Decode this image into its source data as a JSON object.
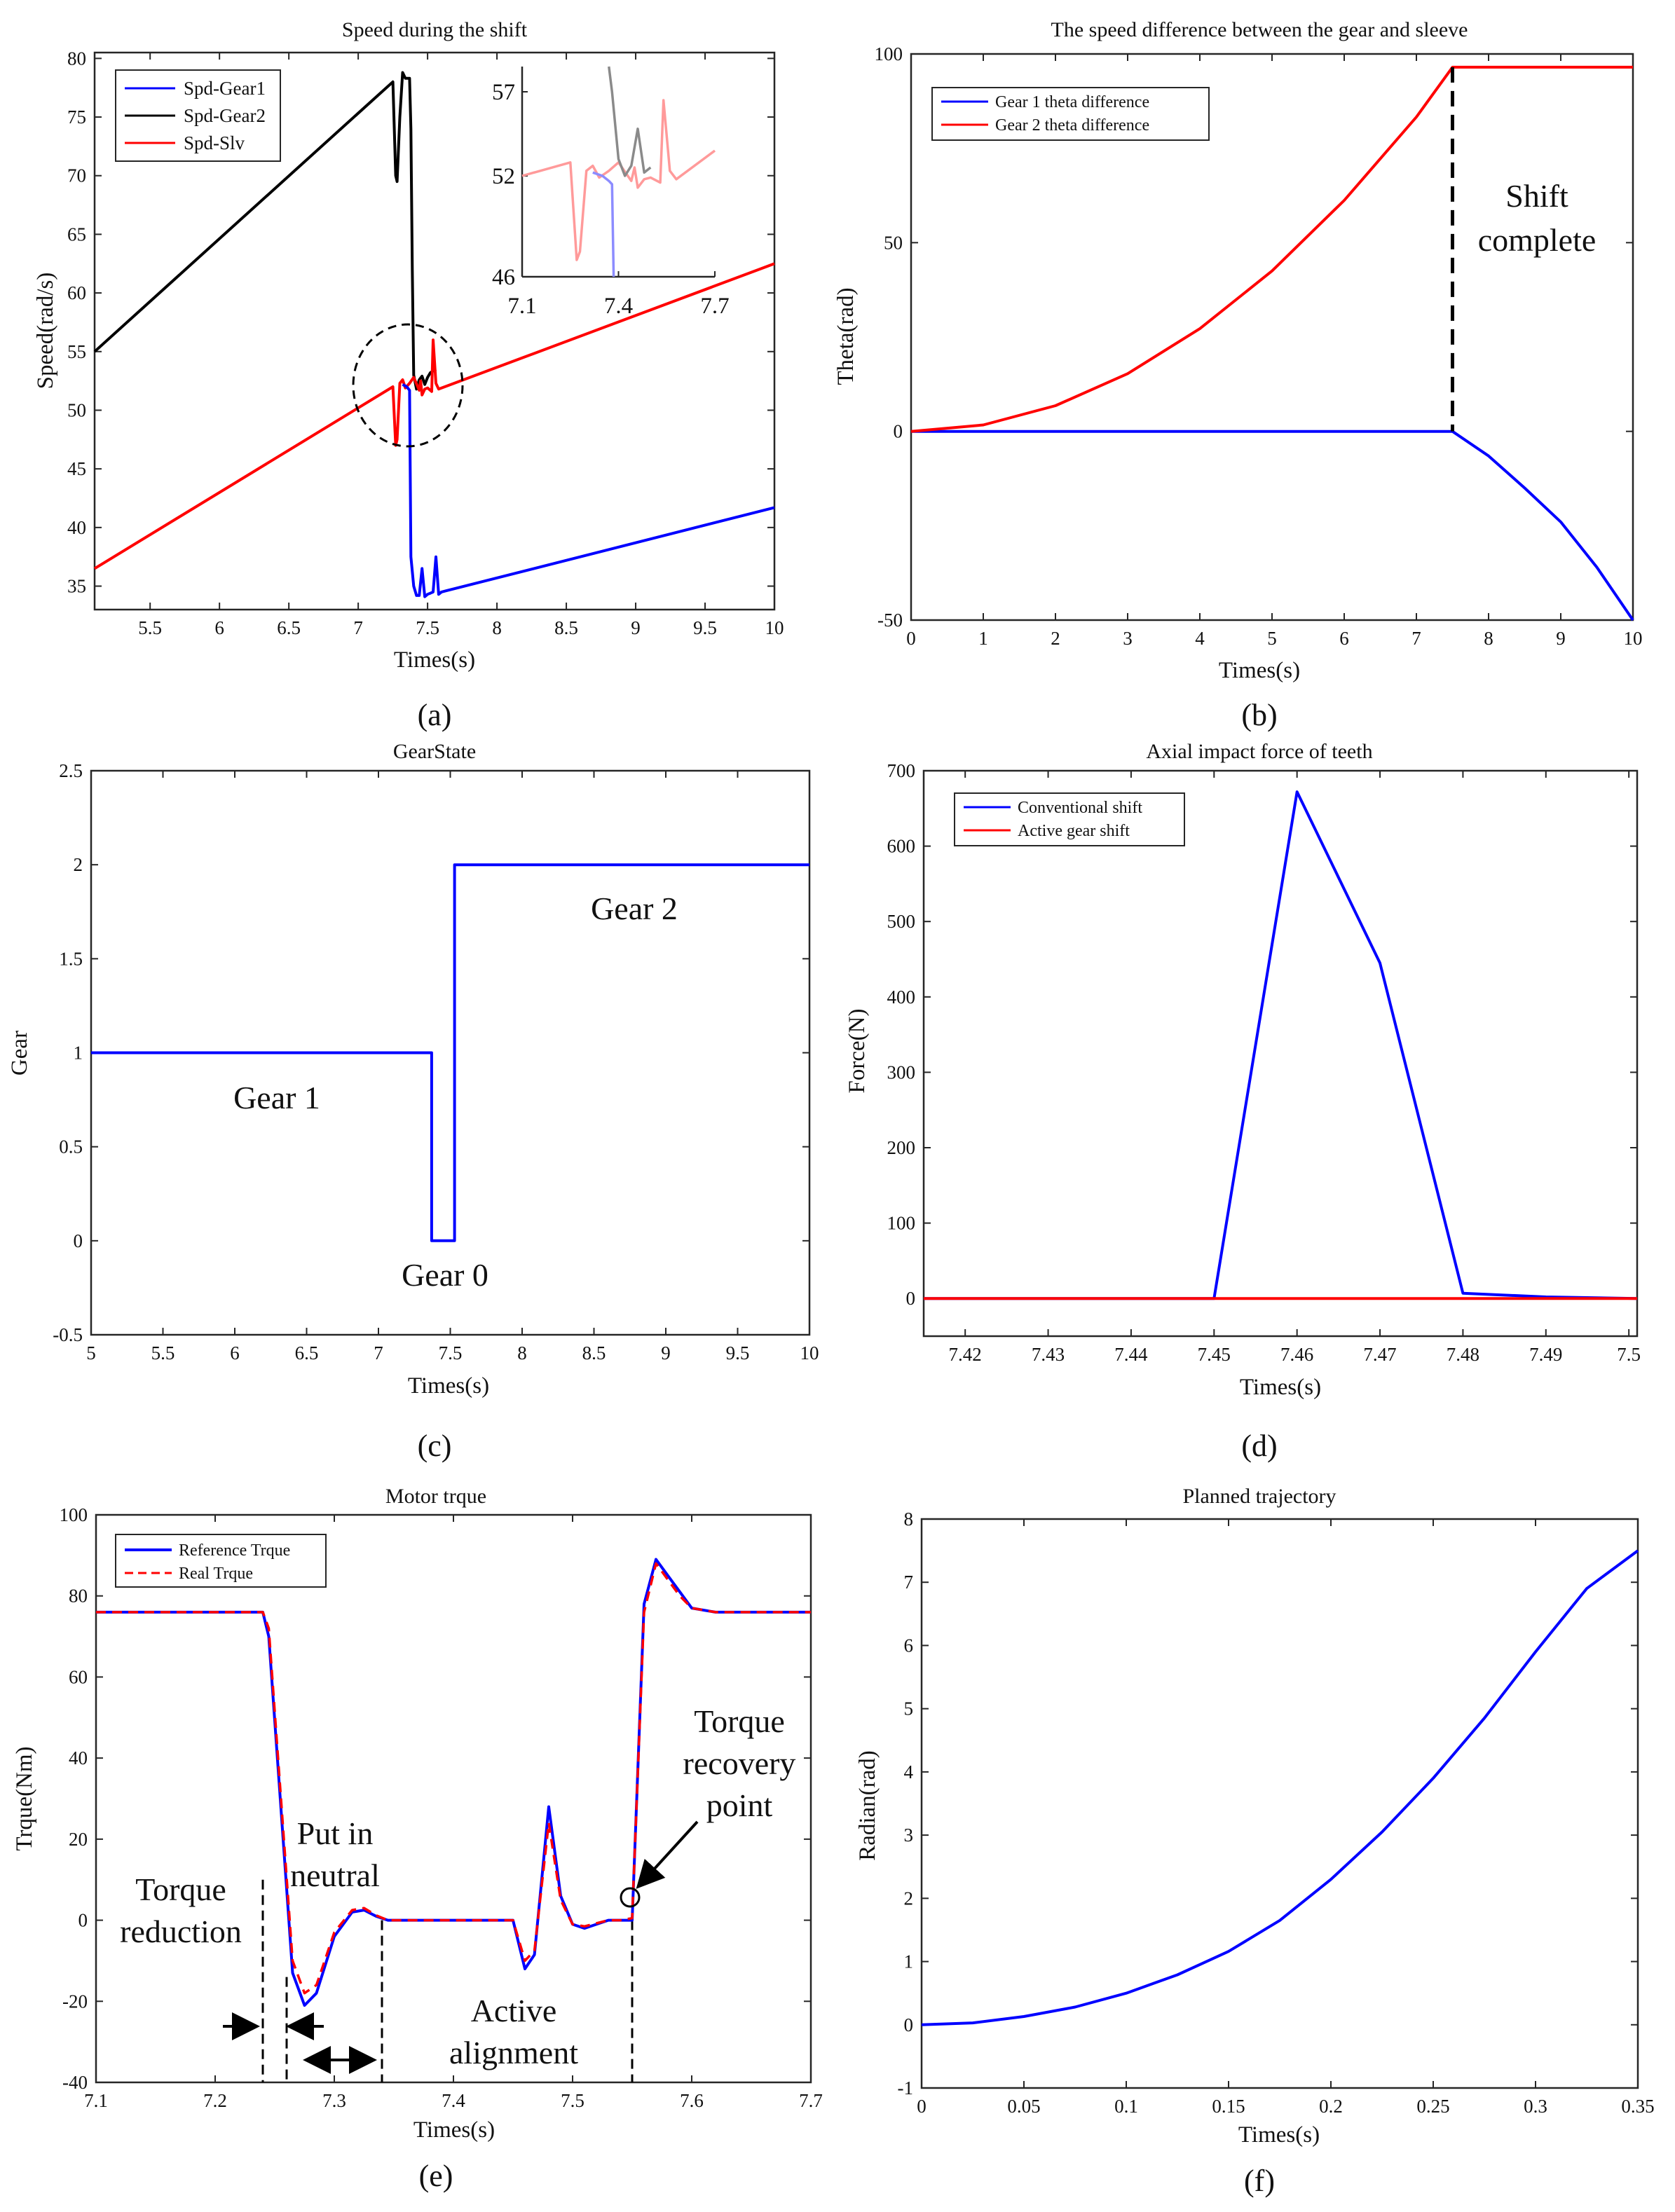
{
  "colors": {
    "blue": "#0000ff",
    "black": "#000000",
    "red": "#ff0000",
    "inset_black": "#8a8a8a",
    "inset_red": "#ff9a9a",
    "inset_blue": "#8c8cff"
  },
  "chart_data": [
    {
      "id": "a",
      "type": "line",
      "caption": "(a)",
      "title": "Speed during the shift",
      "xlabel": "Times(s)",
      "ylabel": "Speed(rad/s)",
      "xlim": [
        5.1,
        10
      ],
      "ylim": [
        33,
        80.5
      ],
      "xticks": [
        5.5,
        6,
        6.5,
        7,
        7.5,
        8,
        8.5,
        9,
        9.5,
        10
      ],
      "yticks": [
        35,
        40,
        45,
        50,
        55,
        60,
        65,
        70,
        75,
        80
      ],
      "legend": [
        "Spd-Gear1",
        "Spd-Gear2",
        "Spd-Slv"
      ],
      "series": [
        {
          "name": "Spd-Gear2",
          "color": "black",
          "x": [
            5.1,
            7.25,
            7.27,
            7.28,
            7.3,
            7.32,
            7.34,
            7.37,
            7.38,
            7.39,
            7.4,
            7.42,
            7.44,
            7.46,
            7.48,
            7.5,
            7.52,
            7.56
          ],
          "y": [
            55,
            78,
            70,
            69.5,
            75,
            78.8,
            78.3,
            78.3,
            74,
            62,
            53,
            51.8,
            52.6,
            52.9,
            52.2,
            52.8,
            53.2,
            53.5
          ]
        },
        {
          "name": "Spd-Slv",
          "color": "red",
          "x": [
            5.1,
            7.25,
            7.27,
            7.28,
            7.3,
            7.32,
            7.34,
            7.37,
            7.4,
            7.44,
            7.45,
            7.46,
            7.48,
            7.5,
            7.53,
            7.54,
            7.56,
            7.58,
            10
          ],
          "y": [
            36.5,
            52,
            47,
            47.5,
            52.3,
            52.6,
            51.9,
            52.3,
            52.8,
            51.7,
            52.5,
            51.3,
            51.8,
            51.9,
            51.6,
            56,
            52.3,
            51.8,
            62.5
          ]
        },
        {
          "name": "Spd-Gear1",
          "color": "blue",
          "x": [
            7.32,
            7.35,
            7.37,
            7.38,
            7.4,
            7.42,
            7.44,
            7.46,
            7.48,
            7.5,
            7.52,
            7.54,
            7.56,
            7.58,
            7.6,
            10
          ],
          "y": [
            52.2,
            52,
            51.7,
            37.5,
            35,
            34.2,
            34.2,
            36.5,
            34.1,
            34.3,
            34.4,
            34.5,
            37.5,
            34.3,
            34.5,
            41.7
          ]
        }
      ],
      "inset": {
        "xlim": [
          7.1,
          7.7
        ],
        "ylim": [
          46,
          58.5
        ],
        "xticks": [
          7.1,
          7.4,
          7.7
        ],
        "yticks": [
          46,
          52,
          57
        ],
        "series": [
          {
            "name": "Spd-Slv",
            "color": "inset_red",
            "x": [
              7.1,
              7.25,
              7.27,
              7.28,
              7.3,
              7.32,
              7.34,
              7.37,
              7.4,
              7.44,
              7.45,
              7.46,
              7.48,
              7.5,
              7.53,
              7.54,
              7.56,
              7.58,
              7.7
            ],
            "y": [
              52,
              52.8,
              47,
              47.5,
              52.3,
              52.6,
              51.9,
              52.3,
              52.8,
              51.7,
              52.5,
              51.3,
              51.8,
              51.9,
              51.6,
              56.5,
              52.3,
              51.8,
              53.5
            ]
          },
          {
            "name": "Spd-Gear2",
            "color": "inset_black",
            "x": [
              7.37,
              7.38,
              7.4,
              7.42,
              7.44,
              7.46,
              7.48,
              7.5
            ],
            "y": [
              58.5,
              57,
              53,
              52,
              52.6,
              54.8,
              52.2,
              52.5
            ]
          },
          {
            "name": "Spd-Gear1",
            "color": "inset_blue",
            "x": [
              7.32,
              7.35,
              7.37,
              7.38,
              7.385
            ],
            "y": [
              52.2,
              52,
              51.7,
              51.5,
              46
            ]
          }
        ]
      }
    },
    {
      "id": "b",
      "type": "line",
      "caption": "(b)",
      "title": "The speed difference between the gear and sleeve",
      "xlabel": "Times(s)",
      "ylabel": "Theta(rad)",
      "xlim": [
        0,
        10
      ],
      "ylim": [
        -50,
        100
      ],
      "xticks": [
        0,
        1,
        2,
        3,
        4,
        5,
        6,
        7,
        8,
        9,
        10
      ],
      "yticks": [
        -50,
        0,
        50,
        100
      ],
      "legend": [
        "Gear 1 theta difference",
        "Gear 2 theta difference"
      ],
      "annotations": [
        "Shift",
        "complete"
      ],
      "marker_x": 7.5,
      "series": [
        {
          "name": "Gear 1 theta difference",
          "color": "blue",
          "x": [
            0,
            7.5,
            8,
            8.5,
            9,
            9.5,
            10
          ],
          "y": [
            0,
            0,
            -6.5,
            -15,
            -24,
            -36,
            -50
          ]
        },
        {
          "name": "Gear 2 theta difference",
          "color": "red",
          "x": [
            0,
            1,
            2,
            3,
            4,
            5,
            6,
            7,
            7.5,
            10
          ],
          "y": [
            0,
            1.7,
            6.8,
            15.3,
            27.2,
            42.5,
            61.2,
            83.3,
            96.5,
            96.5
          ]
        }
      ]
    },
    {
      "id": "c",
      "type": "line",
      "caption": "(c)",
      "title": "GearState",
      "xlabel": "Times(s)",
      "ylabel": "Gear",
      "xlim": [
        5,
        10
      ],
      "ylim": [
        -0.5,
        2.5
      ],
      "xticks": [
        5,
        5.5,
        6,
        6.5,
        7,
        7.5,
        8,
        8.5,
        9,
        9.5,
        10
      ],
      "yticks": [
        -0.5,
        0,
        0.5,
        1,
        1.5,
        2,
        2.5
      ],
      "annotations": [
        "Gear 1",
        "Gear 0",
        "Gear 2"
      ],
      "series": [
        {
          "name": "GearState",
          "color": "blue",
          "x": [
            5,
            7.37,
            7.37,
            7.53,
            7.53,
            10
          ],
          "y": [
            1,
            1,
            0,
            0,
            2,
            2
          ]
        }
      ]
    },
    {
      "id": "d",
      "type": "line",
      "caption": "(d)",
      "title": "Axial impact force of teeth",
      "xlabel": "Times(s)",
      "ylabel": "Force(N)",
      "xlim": [
        7.415,
        7.501
      ],
      "ylim": [
        -50,
        700
      ],
      "xticks": [
        7.42,
        7.43,
        7.44,
        7.45,
        7.46,
        7.47,
        7.48,
        7.49,
        7.5
      ],
      "yticks": [
        0,
        100,
        200,
        300,
        400,
        500,
        600,
        700
      ],
      "legend": [
        "Conventional shift",
        "Active gear shift"
      ],
      "series": [
        {
          "name": "Conventional shift",
          "color": "blue",
          "x": [
            7.415,
            7.45,
            7.46,
            7.47,
            7.48,
            7.49,
            7.501
          ],
          "y": [
            0,
            0,
            672,
            445,
            7,
            2,
            0
          ]
        },
        {
          "name": "Active gear shift",
          "color": "red",
          "x": [
            7.415,
            7.501
          ],
          "y": [
            0,
            0
          ]
        }
      ]
    },
    {
      "id": "e",
      "type": "line",
      "caption": "(e)",
      "title": "Motor trque",
      "xlabel": "Times(s)",
      "ylabel": "Trque(Nm)",
      "xlim": [
        7.1,
        7.7
      ],
      "ylim": [
        -40,
        100
      ],
      "xticks": [
        7.1,
        7.2,
        7.3,
        7.4,
        7.5,
        7.6,
        7.7
      ],
      "yticks": [
        -40,
        -20,
        0,
        20,
        40,
        60,
        80,
        100
      ],
      "legend": [
        "Reference Trque",
        "Real Trque"
      ],
      "annotations": [
        "Torque",
        "reduction",
        "Put in",
        "neutral",
        "Active",
        "alignment",
        "Torque",
        "recovery",
        "point"
      ],
      "markers_x": [
        7.24,
        7.26,
        7.34,
        7.55
      ],
      "series": [
        {
          "name": "Reference Trque",
          "color": "blue",
          "style": "solid",
          "x": [
            7.1,
            7.24,
            7.245,
            7.265,
            7.275,
            7.285,
            7.3,
            7.315,
            7.325,
            7.335,
            7.345,
            7.45,
            7.46,
            7.468,
            7.48,
            7.49,
            7.5,
            7.51,
            7.53,
            7.54,
            7.55,
            7.56,
            7.57,
            7.58,
            7.59,
            7.6,
            7.62,
            7.7
          ],
          "y": [
            76,
            76,
            70,
            -13,
            -21,
            -18,
            -4,
            2,
            2.5,
            1,
            0,
            0,
            -12,
            -8.5,
            28,
            6,
            -1,
            -2,
            0,
            0,
            0,
            78,
            89,
            85,
            81,
            77,
            76,
            76
          ]
        },
        {
          "name": "Real Trque",
          "color": "red",
          "style": "dashed",
          "x": [
            7.1,
            7.24,
            7.245,
            7.265,
            7.275,
            7.285,
            7.3,
            7.315,
            7.325,
            7.335,
            7.345,
            7.45,
            7.46,
            7.468,
            7.48,
            7.49,
            7.5,
            7.51,
            7.53,
            7.54,
            7.55,
            7.56,
            7.57,
            7.58,
            7.59,
            7.6,
            7.62,
            7.7
          ],
          "y": [
            76,
            76,
            72,
            -10,
            -18,
            -16,
            -3,
            2.5,
            3,
            1.2,
            0,
            0,
            -10,
            -7.5,
            24,
            5,
            -1,
            -1.5,
            0,
            0,
            0.5,
            76,
            88,
            84,
            80,
            77,
            76,
            76
          ]
        }
      ]
    },
    {
      "id": "f",
      "type": "line",
      "caption": "(f)",
      "title": "Planned trajectory",
      "xlabel": "Times(s)",
      "ylabel": "Radian(rad)",
      "xlim": [
        0,
        0.35
      ],
      "ylim": [
        -1,
        8
      ],
      "xticks": [
        0,
        0.05,
        0.1,
        0.15,
        0.2,
        0.25,
        0.3,
        0.35
      ],
      "yticks": [
        -1,
        0,
        1,
        2,
        3,
        4,
        5,
        6,
        7,
        8
      ],
      "series": [
        {
          "name": "Planned trajectory",
          "color": "blue",
          "x": [
            0,
            0.025,
            0.05,
            0.075,
            0.1,
            0.125,
            0.15,
            0.175,
            0.2,
            0.225,
            0.25,
            0.275,
            0.3,
            0.325,
            0.35
          ],
          "y": [
            0,
            0.03,
            0.13,
            0.28,
            0.5,
            0.79,
            1.16,
            1.65,
            2.3,
            3.05,
            3.9,
            4.85,
            5.9,
            6.9,
            7.5
          ]
        }
      ]
    }
  ]
}
